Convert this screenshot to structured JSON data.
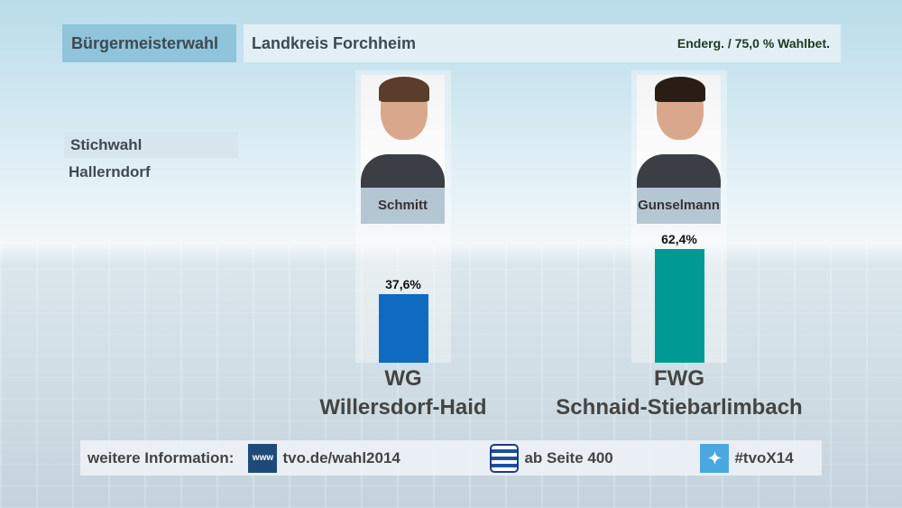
{
  "header": {
    "election": "Bürgermeisterwahl",
    "region": "Landkreis Forchheim",
    "status": "Enderg. / 75,0 % Wahlbet."
  },
  "sub": {
    "type": "Stichwahl",
    "municipality": "Hallerndorf"
  },
  "chart_data": {
    "type": "bar",
    "categories": [
      "Schmitt",
      "Gunselmann"
    ],
    "values": [
      37.6,
      62.4
    ],
    "value_labels": [
      "37,6%",
      "62,4%"
    ],
    "parties": [
      {
        "line1": "WG",
        "line2": "Willersdorf-Haid"
      },
      {
        "line1": "FWG",
        "line2": "Schnaid-Stiebarlimbach"
      }
    ],
    "colors": [
      "#0e6bbf",
      "#009a94"
    ],
    "ylim": [
      0,
      100
    ]
  },
  "footer": {
    "label": "weitere Information:",
    "www_icon": "www",
    "web": "tvo.de/wahl2014",
    "teletext": "ab Seite 400",
    "hashtag": "#tvoX14"
  }
}
